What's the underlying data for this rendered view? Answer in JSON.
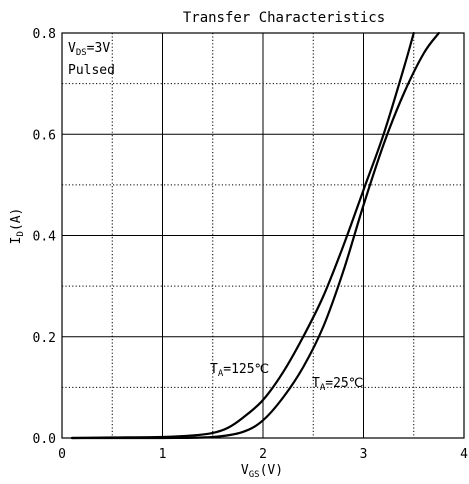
{
  "chart_data": {
    "type": "line",
    "title": "Transfer Characteristics",
    "xlabel": {
      "main": "V",
      "sub": "GS",
      "unit": "(V)"
    },
    "ylabel": {
      "main": "I",
      "sub": "D",
      "unit": "(A)"
    },
    "xlim": [
      0,
      4
    ],
    "ylim": [
      0,
      0.8
    ],
    "x_ticks": [
      "0",
      "1",
      "2",
      "3",
      "4"
    ],
    "y_ticks": [
      "0.0",
      "0.2",
      "0.4",
      "0.6",
      "0.8"
    ],
    "grid": true,
    "conditions": [
      {
        "main": "V",
        "sub": "DS",
        "rest": "=3V"
      },
      {
        "main": "Pulsed",
        "sub": "",
        "rest": ""
      }
    ],
    "series": [
      {
        "name": "T_A=125℃",
        "label": {
          "main": "T",
          "sub": "A",
          "rest": "=125℃"
        },
        "points": [
          [
            0.1,
            0.0
          ],
          [
            0.5,
            0.001
          ],
          [
            1.0,
            0.002
          ],
          [
            1.3,
            0.005
          ],
          [
            1.5,
            0.01
          ],
          [
            1.65,
            0.02
          ],
          [
            1.8,
            0.04
          ],
          [
            2.0,
            0.075
          ],
          [
            2.2,
            0.13
          ],
          [
            2.4,
            0.2
          ],
          [
            2.6,
            0.28
          ],
          [
            2.8,
            0.38
          ],
          [
            3.0,
            0.49
          ],
          [
            3.2,
            0.6
          ],
          [
            3.4,
            0.73
          ],
          [
            3.5,
            0.8
          ]
        ]
      },
      {
        "name": "T_A=25℃",
        "label": {
          "main": "T",
          "sub": "A",
          "rest": "=25℃"
        },
        "points": [
          [
            0.1,
            0.0
          ],
          [
            1.0,
            0.0
          ],
          [
            1.5,
            0.002
          ],
          [
            1.8,
            0.012
          ],
          [
            2.0,
            0.035
          ],
          [
            2.2,
            0.08
          ],
          [
            2.4,
            0.14
          ],
          [
            2.6,
            0.22
          ],
          [
            2.8,
            0.33
          ],
          [
            3.0,
            0.46
          ],
          [
            3.2,
            0.58
          ],
          [
            3.4,
            0.68
          ],
          [
            3.6,
            0.76
          ],
          [
            3.75,
            0.8
          ]
        ]
      }
    ]
  }
}
